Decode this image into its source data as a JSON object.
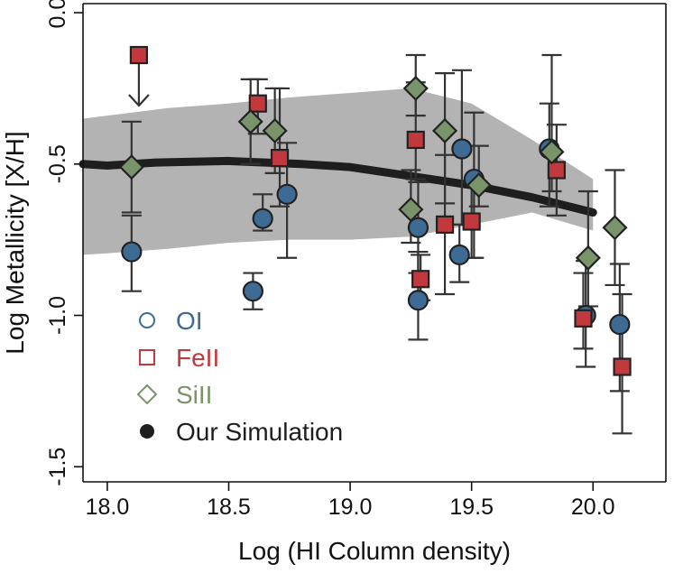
{
  "chart_data": {
    "type": "scatter",
    "title": "",
    "xlabel": "Log (HI Column density)",
    "ylabel": "Log Metallicity [X/H]",
    "xlim": [
      17.9,
      20.3
    ],
    "ylim": [
      -1.55,
      0.03
    ],
    "xticks": [
      18.0,
      18.5,
      19.0,
      19.5,
      20.0
    ],
    "xtick_labels": [
      "18.0",
      "18.5",
      "19.0",
      "19.5",
      "20.0"
    ],
    "yticks": [
      0.0,
      -0.5,
      -1.0,
      -1.5
    ],
    "ytick_labels": [
      "0.0",
      "-0.5",
      "-1.0",
      "-1.5"
    ],
    "grid": false,
    "legend_position": "bottom-left",
    "colors": {
      "OI": "#3d6b94",
      "FeII": "#c1393d",
      "SiII": "#79946a",
      "simulation": "#1e1e1e",
      "band": "#b3b3b3"
    },
    "series": [
      {
        "name": "OI",
        "marker": "circle",
        "points": [
          {
            "x": 18.1,
            "y": -0.79,
            "lo": -0.92,
            "hi": -0.67
          },
          {
            "x": 18.6,
            "y": -0.92,
            "lo": -0.98,
            "hi": -0.86
          },
          {
            "x": 18.64,
            "y": -0.68,
            "lo": -0.72,
            "hi": -0.6
          },
          {
            "x": 18.74,
            "y": -0.6,
            "lo": -0.81,
            "hi": -0.43
          },
          {
            "x": 19.28,
            "y": -0.71,
            "lo": -0.86,
            "hi": -0.56
          },
          {
            "x": 19.28,
            "y": -0.95,
            "lo": -1.08,
            "hi": -0.79
          },
          {
            "x": 19.45,
            "y": -0.8,
            "lo": -0.89,
            "hi": -0.7
          },
          {
            "x": 19.46,
            "y": -0.45,
            "lo": -0.7,
            "hi": -0.19
          },
          {
            "x": 19.51,
            "y": -0.55,
            "lo": -0.81,
            "hi": -0.33
          },
          {
            "x": 19.82,
            "y": -0.45,
            "lo": -0.64,
            "hi": -0.3
          },
          {
            "x": 19.97,
            "y": -1.0,
            "lo": -1.17,
            "hi": -0.82
          },
          {
            "x": 20.11,
            "y": -1.03,
            "lo": -1.25,
            "hi": -0.83
          }
        ]
      },
      {
        "name": "FeII",
        "marker": "square",
        "points": [
          {
            "x": 18.13,
            "y": -0.14,
            "upper_limit": true
          },
          {
            "x": 18.62,
            "y": -0.3,
            "lo": -0.4,
            "hi": -0.22
          },
          {
            "x": 18.71,
            "y": -0.48,
            "lo": -0.64,
            "hi": -0.25
          },
          {
            "x": 19.27,
            "y": -0.42,
            "lo": -0.55,
            "hi": -0.23
          },
          {
            "x": 19.29,
            "y": -0.88,
            "lo": -0.95,
            "hi": -0.8
          },
          {
            "x": 19.39,
            "y": -0.7,
            "lo": -0.93,
            "hi": -0.47
          },
          {
            "x": 19.5,
            "y": -0.69,
            "lo": -0.81,
            "hi": -0.56
          },
          {
            "x": 19.85,
            "y": -0.52,
            "lo": -0.67,
            "hi": -0.37
          },
          {
            "x": 19.96,
            "y": -1.01,
            "lo": -1.11,
            "hi": -0.86
          },
          {
            "x": 20.12,
            "y": -1.17,
            "lo": -1.39,
            "hi": -0.93
          }
        ]
      },
      {
        "name": "SiII",
        "marker": "diamond",
        "points": [
          {
            "x": 18.1,
            "y": -0.51,
            "lo": -0.66,
            "hi": -0.36
          },
          {
            "x": 18.59,
            "y": -0.36,
            "lo": -0.5,
            "hi": -0.22
          },
          {
            "x": 18.69,
            "y": -0.39,
            "lo": -0.53,
            "hi": -0.25
          },
          {
            "x": 19.25,
            "y": -0.65,
            "lo": -0.76,
            "hi": -0.52
          },
          {
            "x": 19.27,
            "y": -0.25,
            "lo": -0.34,
            "hi": -0.14
          },
          {
            "x": 19.39,
            "y": -0.39,
            "lo": -0.63,
            "hi": -0.2
          },
          {
            "x": 19.53,
            "y": -0.57,
            "lo": -0.64,
            "hi": -0.44
          },
          {
            "x": 19.83,
            "y": -0.46,
            "lo": -0.59,
            "hi": -0.14
          },
          {
            "x": 19.98,
            "y": -0.81,
            "lo": -0.97,
            "hi": -0.59
          },
          {
            "x": 20.09,
            "y": -0.71,
            "lo": -0.9,
            "hi": -0.52
          }
        ]
      }
    ],
    "simulation": {
      "name": "Our Simulation",
      "line": [
        {
          "x": 17.9,
          "y": -0.5
        },
        {
          "x": 18.0,
          "y": -0.505
        },
        {
          "x": 18.2,
          "y": -0.495
        },
        {
          "x": 18.5,
          "y": -0.49
        },
        {
          "x": 18.8,
          "y": -0.5
        },
        {
          "x": 19.0,
          "y": -0.51
        },
        {
          "x": 19.25,
          "y": -0.54
        },
        {
          "x": 19.5,
          "y": -0.57
        },
        {
          "x": 19.75,
          "y": -0.61
        },
        {
          "x": 20.0,
          "y": -0.66
        }
      ],
      "band": [
        {
          "x": 17.9,
          "lo": -0.8,
          "hi": -0.35
        },
        {
          "x": 18.0,
          "lo": -0.795,
          "hi": -0.34
        },
        {
          "x": 18.25,
          "lo": -0.78,
          "hi": -0.315
        },
        {
          "x": 18.5,
          "lo": -0.76,
          "hi": -0.3
        },
        {
          "x": 18.75,
          "lo": -0.75,
          "hi": -0.28
        },
        {
          "x": 19.0,
          "lo": -0.75,
          "hi": -0.265
        },
        {
          "x": 19.25,
          "lo": -0.74,
          "hi": -0.25
        },
        {
          "x": 19.5,
          "lo": -0.7,
          "hi": -0.3
        },
        {
          "x": 19.75,
          "lo": -0.66,
          "hi": -0.42
        },
        {
          "x": 20.0,
          "lo": -0.72,
          "hi": -0.55
        }
      ]
    },
    "legend": [
      {
        "label": "OI",
        "symbol": "circle-open",
        "color": "#3d6b94"
      },
      {
        "label": "FeII",
        "symbol": "square-open",
        "color": "#c1393d"
      },
      {
        "label": "SiII",
        "symbol": "diamond-open",
        "color": "#79946a"
      },
      {
        "label": "Our Simulation",
        "symbol": "dot-filled",
        "color": "#1e1e1e"
      }
    ]
  }
}
